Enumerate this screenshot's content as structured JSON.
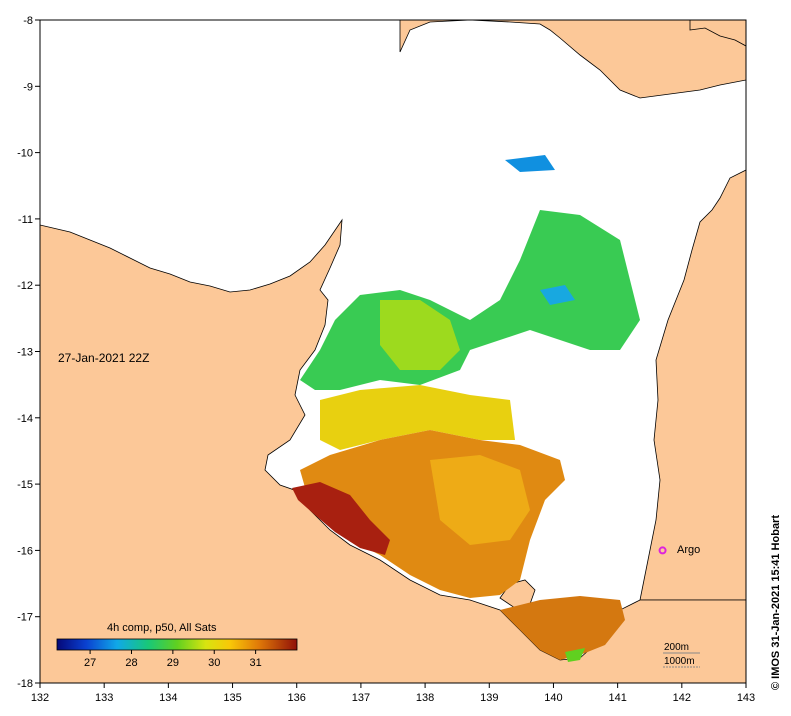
{
  "map": {
    "date_label": "27-Jan-2021 22Z",
    "x_ticks": [
      "132",
      "133",
      "134",
      "135",
      "136",
      "137",
      "138",
      "139",
      "140",
      "141",
      "142",
      "143"
    ],
    "y_ticks": [
      "-8",
      "-9",
      "-10",
      "-11",
      "-12",
      "-13",
      "-14",
      "-15",
      "-16",
      "-17",
      "-18"
    ],
    "colorbar": {
      "title": "4h comp, p50, All Sats",
      "ticks": [
        "27",
        "28",
        "29",
        "30",
        "31"
      ],
      "range": [
        26.2,
        32.0
      ]
    },
    "marker": {
      "label": "Argo",
      "lon": 141.7,
      "lat": -16.0,
      "color": "#dd22dd"
    },
    "depth_legend": [
      "200m",
      "1000m"
    ],
    "credit": "© IMOS 31-Jan-2021 15:41 Hobart",
    "colors": {
      "land": "#fcc898",
      "water": "#ffffff"
    }
  }
}
